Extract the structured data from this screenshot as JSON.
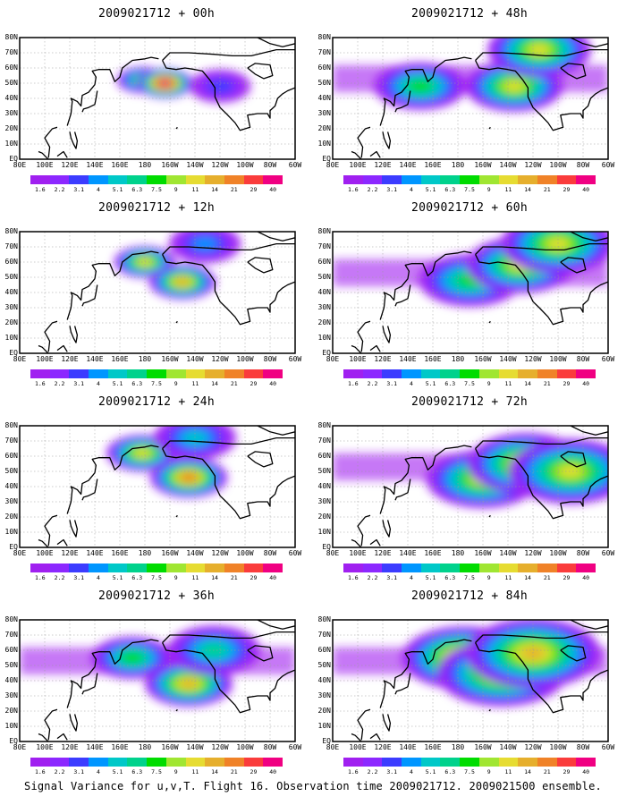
{
  "caption": "Signal Variance for u,v,T. Flight 16. Observation time 2009021712. 2009021500 ensemble.",
  "lat_labels": [
    "80N",
    "70N",
    "60N",
    "50N",
    "40N",
    "30N",
    "20N",
    "10N",
    "EQ"
  ],
  "lon_labels": [
    "80E",
    "100E",
    "120E",
    "140E",
    "160E",
    "180",
    "160W",
    "140W",
    "120W",
    "100W",
    "80W",
    "60W"
  ],
  "colorbar": {
    "colors": [
      "#a020f0",
      "#8c28ff",
      "#3c3cff",
      "#0096ff",
      "#00c8c8",
      "#00d28c",
      "#00dc00",
      "#a0e632",
      "#e6dc32",
      "#e6af2d",
      "#f08228",
      "#fa3c3c",
      "#f00082"
    ],
    "labels": [
      "1.6",
      "2.2",
      "3.1",
      "4",
      "5.1",
      "6.3",
      "7.5",
      "9",
      "11",
      "14",
      "21",
      "29",
      "40"
    ]
  },
  "chart_data": {
    "type": "heatmap",
    "field": "Signal Variance for u,v,T",
    "lon_range": [
      "80E",
      "60W"
    ],
    "lat_range": [
      "EQ",
      "80N"
    ],
    "contour_levels": [
      1.6,
      2.2,
      3.1,
      4,
      5.1,
      6.3,
      7.5,
      9,
      11,
      14,
      21,
      29,
      40
    ],
    "panels": [
      {
        "title": "2009021712 + 00h",
        "lead_hours": 0,
        "blobs": [
          {
            "lon": 178,
            "lat": 52,
            "value": 7.5
          },
          {
            "lon": 196,
            "lat": 50,
            "value": 40
          },
          {
            "lon": 240,
            "lat": 48,
            "value": 3.1
          }
        ]
      },
      {
        "title": "2009021712 + 12h",
        "lead_hours": 12,
        "blobs": [
          {
            "lon": 180,
            "lat": 60,
            "value": 11
          },
          {
            "lon": 210,
            "lat": 47,
            "value": 14
          },
          {
            "lon": 228,
            "lat": 72,
            "value": 4
          }
        ]
      },
      {
        "title": "2009021712 + 24h",
        "lead_hours": 24,
        "blobs": [
          {
            "lon": 178,
            "lat": 62,
            "value": 11
          },
          {
            "lon": 215,
            "lat": 46,
            "value": 21
          },
          {
            "lon": 220,
            "lat": 72,
            "value": 5.1
          }
        ]
      },
      {
        "title": "2009021712 + 36h",
        "lead_hours": 36,
        "blobs": [
          {
            "lon": 170,
            "lat": 55,
            "value": 7.5
          },
          {
            "lon": 215,
            "lat": 38,
            "value": 14
          },
          {
            "lon": 235,
            "lat": 60,
            "value": 6.3
          }
        ]
      },
      {
        "title": "2009021712 + 48h",
        "lead_hours": 48,
        "blobs": [
          {
            "lon": 150,
            "lat": 48,
            "value": 7.5
          },
          {
            "lon": 225,
            "lat": 48,
            "value": 11
          },
          {
            "lon": 245,
            "lat": 72,
            "value": 11
          }
        ]
      },
      {
        "title": "2009021712 + 60h",
        "lead_hours": 60,
        "blobs": [
          {
            "lon": 190,
            "lat": 48,
            "value": 7.5
          },
          {
            "lon": 230,
            "lat": 58,
            "value": 11
          },
          {
            "lon": 260,
            "lat": 72,
            "value": 11
          }
        ]
      },
      {
        "title": "2009021712 + 72h",
        "lead_hours": 72,
        "blobs": [
          {
            "lon": 200,
            "lat": 45,
            "value": 11
          },
          {
            "lon": 235,
            "lat": 55,
            "value": 14
          },
          {
            "lon": 270,
            "lat": 50,
            "value": 11
          }
        ]
      },
      {
        "title": "2009021712 + 84h",
        "lead_hours": 84,
        "blobs": [
          {
            "lon": 185,
            "lat": 55,
            "value": 21
          },
          {
            "lon": 215,
            "lat": 45,
            "value": 14
          },
          {
            "lon": 240,
            "lat": 58,
            "value": 14
          }
        ]
      }
    ]
  }
}
